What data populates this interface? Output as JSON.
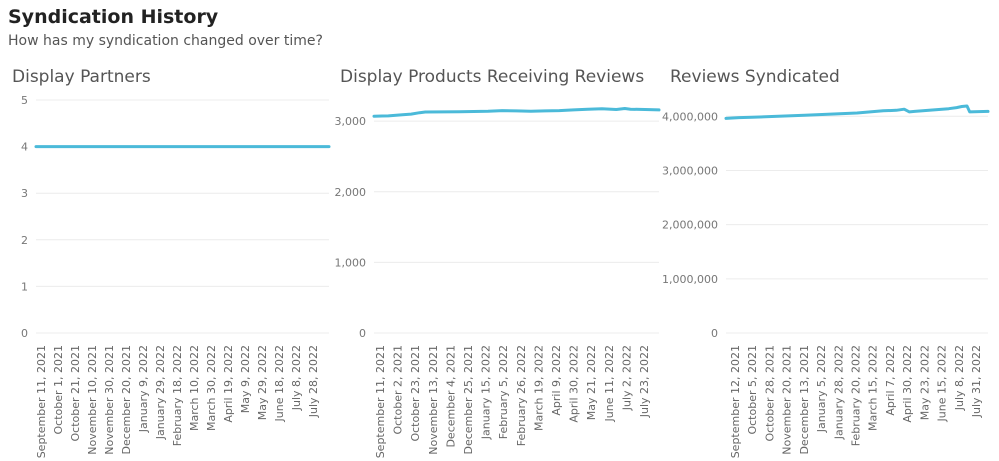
{
  "header": {
    "title": "Syndication History",
    "subtitle": "How has my syndication changed over time?"
  },
  "colors": {
    "line": "#4bbad9",
    "grid": "#ececec",
    "tick": "#777777"
  },
  "chart_data": [
    {
      "type": "line",
      "title": "Display Partners",
      "ylim": [
        0,
        5
      ],
      "yticks": [
        0,
        1,
        2,
        3,
        4,
        5
      ],
      "yticklabels": [
        "0",
        "1",
        "2",
        "3",
        "4",
        "5"
      ],
      "xticklabels": [
        "September 11, 2021",
        "October 1, 2021",
        "October 21, 2021",
        "November 10, 2021",
        "November 30, 2021",
        "December 20, 2021",
        "January 9, 2022",
        "January 29, 2022",
        "February 18, 2022",
        "March 10, 2022",
        "March 30, 2022",
        "April 19, 2022",
        "May 9, 2022",
        "May 29, 2022",
        "June 18, 2022",
        "July 8, 2022",
        "July 28, 2022"
      ],
      "grid": true,
      "series": [
        {
          "x": [
            0,
            1
          ],
          "y": [
            4,
            4
          ]
        }
      ]
    },
    {
      "type": "line",
      "title": "Display Products Receiving Reviews",
      "ylim": [
        0,
        3300
      ],
      "yticks": [
        0,
        1000,
        2000,
        3000
      ],
      "yticklabels": [
        "0",
        "1,000",
        "2,000",
        "3,000"
      ],
      "xticklabels": [
        "September 11, 2021",
        "October 2, 2021",
        "October 23, 2021",
        "November 13, 2021",
        "December 4, 2021",
        "December 25, 2021",
        "January 15, 2022",
        "February 5, 2022",
        "February 26, 2022",
        "March 19, 2022",
        "April 9, 2022",
        "April 30, 2022",
        "May 21, 2022",
        "June 11, 2022",
        "July 2, 2022",
        "July 23, 2022"
      ],
      "grid": true,
      "series": [
        {
          "x": [
            0,
            0.05,
            0.1,
            0.13,
            0.16,
            0.18,
            0.3,
            0.4,
            0.45,
            0.5,
            0.55,
            0.6,
            0.65,
            0.7,
            0.75,
            0.8,
            0.85,
            0.88,
            0.9,
            0.95,
            1
          ],
          "y": [
            3070,
            3075,
            3090,
            3100,
            3120,
            3130,
            3135,
            3140,
            3150,
            3145,
            3140,
            3145,
            3150,
            3160,
            3170,
            3175,
            3165,
            3180,
            3170,
            3165,
            3160
          ]
        }
      ]
    },
    {
      "type": "line",
      "title": "Reviews Syndicated",
      "ylim": [
        0,
        4300000
      ],
      "yticks": [
        0,
        1000000,
        2000000,
        3000000,
        4000000
      ],
      "yticklabels": [
        "0",
        "1,000,000",
        "2,000,000",
        "3,000,000",
        "4,000,000"
      ],
      "xticklabels": [
        "September 12, 2021",
        "October 5, 2021",
        "October 28, 2021",
        "November 20, 2021",
        "December 13, 2021",
        "January 5, 2022",
        "January 28, 2022",
        "February 20, 2022",
        "March 15, 2022",
        "April 7, 2022",
        "April 30, 2022",
        "May 23, 2022",
        "June 15, 2022",
        "July 8, 2022",
        "July 31, 2022"
      ],
      "grid": true,
      "series": [
        {
          "x": [
            0,
            0.05,
            0.1,
            0.15,
            0.2,
            0.3,
            0.4,
            0.5,
            0.55,
            0.6,
            0.65,
            0.68,
            0.7,
            0.72,
            0.8,
            0.85,
            0.88,
            0.9,
            0.92,
            0.93,
            1
          ],
          "y": [
            3960000,
            3975000,
            3980000,
            3990000,
            4000000,
            4020000,
            4040000,
            4060000,
            4080000,
            4100000,
            4110000,
            4130000,
            4080000,
            4090000,
            4120000,
            4140000,
            4160000,
            4180000,
            4190000,
            4080000,
            4090000
          ]
        }
      ]
    }
  ]
}
